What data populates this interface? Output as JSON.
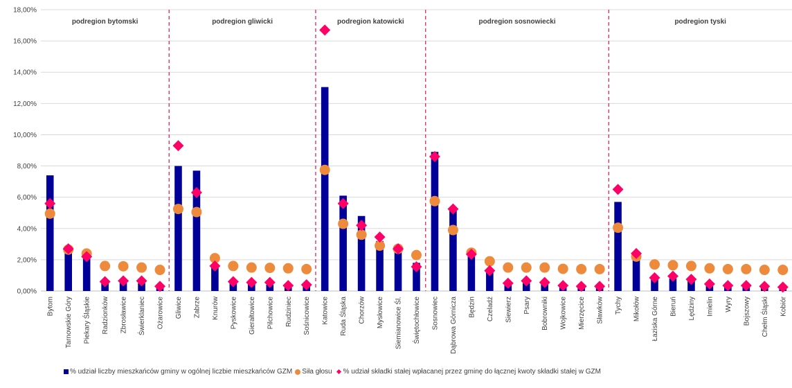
{
  "chart_data": {
    "type": "bar",
    "title": "",
    "xlabel": "",
    "ylabel": "",
    "ylim": [
      0,
      18
    ],
    "y_ticks": [
      "0,00%",
      "2,00%",
      "4,00%",
      "6,00%",
      "8,00%",
      "10,00%",
      "12,00%",
      "14,00%",
      "16,00%",
      "18,00%"
    ],
    "grid": true,
    "legend_position": "bottom",
    "colors": {
      "bar": "#000099",
      "dot": "#ed8a3c",
      "diamond": "#ff0066",
      "separator": "#e0245e"
    },
    "categories": [
      "Bytom",
      "Tarnowskie Góry",
      "Piekary Śląskie",
      "Radzionków",
      "Zbrosławice",
      "Świerklaniec",
      "Ożarowice",
      "Gliwice",
      "Zabrze",
      "Knurów",
      "Pyskowice",
      "Gierałtowice",
      "Pilchowice",
      "Rudziniec",
      "Sośnicowice",
      "Katowice",
      "Ruda Śląska",
      "Chorzów",
      "Mysłowice",
      "Siemianowice Śl.",
      "Świętochłowice",
      "Sosnowiec",
      "Dąbrowa Górnicza",
      "Będzin",
      "Czeladź",
      "Siewierz",
      "Psary",
      "Bobrowniki",
      "Wojkowice",
      "Mierzęcice",
      "Sławków",
      "Tychy",
      "Mikołów",
      "Łaziska Górne",
      "Bieruń",
      "Lędziny",
      "Imielin",
      "Wyry",
      "Bojszowy",
      "Chełm Śląski",
      "Kobiór"
    ],
    "groups": [
      {
        "label": "podregion bytomski",
        "start": 0,
        "end": 6
      },
      {
        "label": "podregion gliwicki",
        "start": 7,
        "end": 14
      },
      {
        "label": "podregion katowicki",
        "start": 15,
        "end": 20
      },
      {
        "label": "podregion sosnowiecki",
        "start": 21,
        "end": 30
      },
      {
        "label": "podregion tyski",
        "start": 31,
        "end": 40
      }
    ],
    "series": [
      {
        "name": "% udział liczby mieszkańców gminy w ogólnej liczbie mieszkańców GZM",
        "kind": "bar",
        "values": [
          7.4,
          2.6,
          2.2,
          0.65,
          0.55,
          0.5,
          0.25,
          8.0,
          7.7,
          1.6,
          0.55,
          0.5,
          0.4,
          0.35,
          0.4,
          13.05,
          6.1,
          4.8,
          3.2,
          2.8,
          1.8,
          8.9,
          5.3,
          2.4,
          1.3,
          0.5,
          0.5,
          0.45,
          0.35,
          0.3,
          0.3,
          5.7,
          2.2,
          0.8,
          0.8,
          0.75,
          0.4,
          0.3,
          0.3,
          0.25,
          0.25
        ]
      },
      {
        "name": "Siła głosu",
        "kind": "circle",
        "values": [
          4.95,
          2.65,
          2.4,
          1.6,
          1.58,
          1.5,
          1.35,
          5.25,
          5.05,
          2.1,
          1.6,
          1.5,
          1.48,
          1.45,
          1.4,
          7.75,
          4.3,
          3.6,
          2.9,
          2.7,
          2.3,
          5.75,
          3.9,
          2.45,
          1.9,
          1.5,
          1.5,
          1.5,
          1.42,
          1.4,
          1.4,
          4.05,
          2.2,
          1.7,
          1.65,
          1.6,
          1.45,
          1.4,
          1.4,
          1.35,
          1.35
        ]
      },
      {
        "name": "% udział składki stałej wpłacanej przez gminę do łącznej kwoty składki stałej w GZM",
        "kind": "diamond",
        "values": [
          5.6,
          2.7,
          2.2,
          0.6,
          0.65,
          0.65,
          0.3,
          9.3,
          6.3,
          1.6,
          0.6,
          0.55,
          0.55,
          0.35,
          0.4,
          16.7,
          5.6,
          4.2,
          3.45,
          2.7,
          1.55,
          8.6,
          5.25,
          2.35,
          1.3,
          0.5,
          0.65,
          0.55,
          0.35,
          0.3,
          0.3,
          6.5,
          2.4,
          0.85,
          0.95,
          0.75,
          0.45,
          0.35,
          0.35,
          0.3,
          0.25
        ]
      }
    ]
  }
}
